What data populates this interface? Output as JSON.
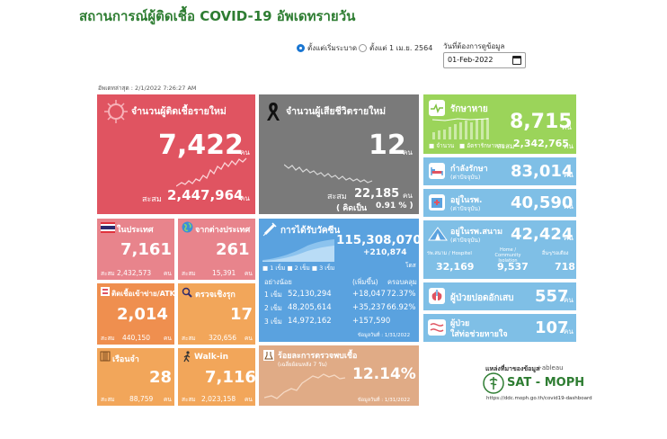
{
  "header": {
    "title": "สถานการณ์ผู้ติดเชื้อ COVID-19 อัพเดทรายวัน",
    "radio_1": "ตั้งแต่เริ่มระบาด",
    "radio_2": "ตั้งแต่ 1 เม.ย. 2564",
    "date_label": "วันที่ต้องการดูข้อมูล",
    "date_value": "01-Feb-2022",
    "updated": "อัพเดทล่าสุด : 2/1/2022 7:26:27 AM"
  },
  "new_cases": {
    "label": "จำนวนผู้ติดเชื้อรายใหม่",
    "value": "7,422",
    "unit": "คน",
    "cum_label": "สะสม",
    "cum_value": "2,447,964",
    "cum_unit": "คน"
  },
  "deaths": {
    "label": "จำนวนผู้เสียชีวิตรายใหม่",
    "value": "12",
    "unit": "คน",
    "cum_label": "สะสม",
    "cum_value": "22,185",
    "cum_unit": "คน",
    "pct_label": "( คิดเป็น",
    "pct_value": "0.91 % )"
  },
  "recovered": {
    "label": "รักษาหาย",
    "value": "8,715",
    "unit": "คน",
    "legend_1": "จำนวน",
    "legend_2": "อัตรารักษาหาย",
    "cum_label": "สะสม",
    "cum_value": "2,342,765",
    "cum_unit": "คน"
  },
  "treating": {
    "label": "กำลังรักษา",
    "sub": "(ค่าปัจจุบัน)",
    "value": "83,014",
    "unit": "คน"
  },
  "hospital": {
    "label": "อยู่ในรพ.",
    "sub": "(ค่าปัจจุบัน)",
    "value": "40,590",
    "unit": "คน"
  },
  "field_hospital": {
    "label": "อยู่ในรพ.สนาม",
    "sub": "(ค่าปัจจุบัน)",
    "value": "42,424",
    "unit": "คน",
    "col_1": "รพ.สนาม / Hospitel",
    "col_2": "Home / Community Isolation",
    "col_3": "อื่นๆ/รอเตียง",
    "val_1": "32,169",
    "val_2": "9,537",
    "val_3": "718"
  },
  "severe": {
    "label": "ผู้ป่วยปอดอักเสบ",
    "value": "557",
    "unit": "คน"
  },
  "ventilator": {
    "label_1": "ผู้ป่วย",
    "label_2": "ใส่ท่อช่วยหายใจ",
    "value": "107",
    "unit": "คน"
  },
  "domestic": {
    "label": "ในประเทศ",
    "value": "7,161",
    "cum_label": "สะสม",
    "cum_value": "2,432,573",
    "unit": "คน"
  },
  "imported": {
    "label": "จากต่างประเทศ",
    "value": "261",
    "cum_label": "สะสม",
    "cum_value": "15,391",
    "unit": "คน"
  },
  "atk": {
    "label": "ติดเชื้อเข้าข่าย/ATK",
    "value": "2,014",
    "cum_label": "สะสม",
    "cum_value": "440,150",
    "unit": "คน"
  },
  "proactive": {
    "label": "ตรวจเชิงรุก",
    "value": "17",
    "cum_label": "สะสม",
    "cum_value": "320,656",
    "unit": "คน"
  },
  "prison": {
    "label": "เรือนจำ",
    "value": "28",
    "cum_label": "สะสม",
    "cum_value": "88,759",
    "unit": "คน"
  },
  "walkin": {
    "label": "Walk-in",
    "value": "7,116",
    "cum_label": "สะสม",
    "cum_value": "2,023,158",
    "unit": "คน"
  },
  "vaccine": {
    "label": "การได้รับวัคซีน",
    "total": "115,308,070",
    "new": "+210,874",
    "unit": "โดส",
    "legend": [
      "1 เข็ม",
      "2 เข็ม",
      "3 เข็ม"
    ],
    "col_1": "อย่างน้อย",
    "col_2": "(เพิ่มขึ้น)",
    "col_3": "ครอบคลุม",
    "rows": [
      {
        "dose": "1 เข็ม",
        "total": "52,130,294",
        "added": "+18,047",
        "coverage": "72.37%"
      },
      {
        "dose": "2 เข็ม",
        "total": "48,205,614",
        "added": "+35,237",
        "coverage": "66.92%"
      },
      {
        "dose": "3 เข็ม",
        "total": "14,972,162",
        "added": "+157,590",
        "coverage": ""
      }
    ],
    "as_of": "ข้อมูลวันที่ : 1/31/2022"
  },
  "positivity": {
    "label": "ร้อยละการตรวจพบเชื้อ",
    "sub": "(เฉลี่ยย้อนหลัง 7 วัน)",
    "value": "12.14%",
    "as_of": "ข้อมูลวันที่ : 1/31/2022"
  },
  "source": {
    "label": "แหล่งที่มาของข้อมูล",
    "tableau": "+ableau",
    "brand": "SAT - MOPH",
    "url": "https://ddc.moph.go.th/covid19-dashboard"
  },
  "colors": {
    "red": "#e05461",
    "gray": "#7a7a7a",
    "green": "#9bd45a",
    "blue": "#7fbfe6",
    "pink": "#e8848c",
    "orange": "#f2a65a",
    "dark_orange": "#ef9a3e",
    "vaccine_blue": "#5aa2df",
    "tan": "#e0ab86",
    "title_green": "#2e7d32"
  }
}
